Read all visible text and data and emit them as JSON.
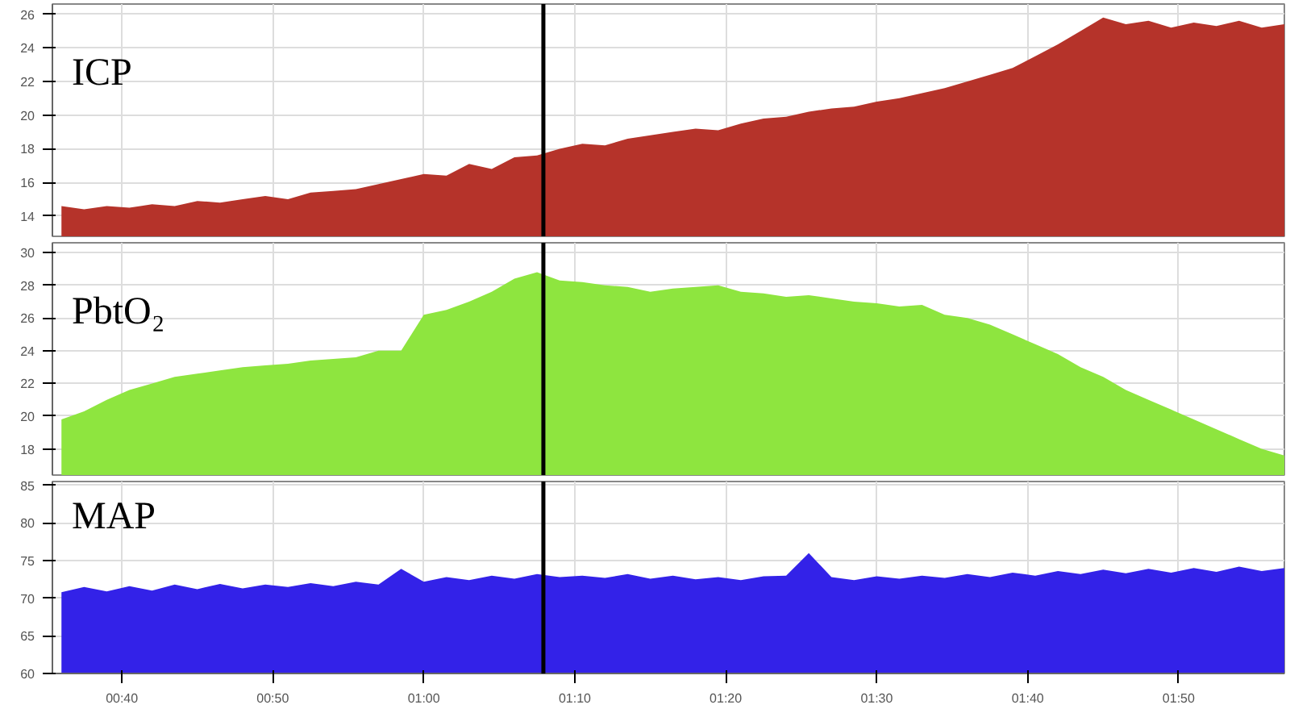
{
  "chart_data": [
    {
      "type": "area",
      "annotations": [
        "ICP"
      ],
      "color": "#b5332a",
      "grid": true,
      "tick_labels": "y",
      "x": [
        0.6,
        0.625,
        0.65,
        0.675,
        0.7,
        0.725,
        0.75,
        0.775,
        0.8,
        0.825,
        0.85,
        0.875,
        0.9,
        0.925,
        0.95,
        0.975,
        1.0,
        1.025,
        1.05,
        1.075,
        1.1,
        1.125,
        1.15,
        1.175,
        1.2,
        1.225,
        1.25,
        1.275,
        1.3,
        1.325,
        1.35,
        1.375,
        1.4,
        1.425,
        1.45,
        1.475,
        1.5,
        1.525,
        1.55,
        1.575,
        1.6,
        1.625,
        1.65,
        1.675,
        1.7,
        1.725,
        1.75,
        1.775,
        1.8,
        1.825,
        1.85,
        1.875,
        1.9,
        1.925,
        1.95
      ],
      "values": [
        14.6,
        14.4,
        14.6,
        14.5,
        14.7,
        14.6,
        14.9,
        14.8,
        15.0,
        15.2,
        15.0,
        15.4,
        15.5,
        15.6,
        15.9,
        16.2,
        16.5,
        16.4,
        17.1,
        16.8,
        17.5,
        17.6,
        18.0,
        18.3,
        18.2,
        18.6,
        18.8,
        19.0,
        19.2,
        19.1,
        19.5,
        19.8,
        19.9,
        20.2,
        20.4,
        20.5,
        20.8,
        21.0,
        21.3,
        21.6,
        22.0,
        22.4,
        22.8,
        23.5,
        24.2,
        25.0,
        25.8,
        25.4,
        25.6,
        25.2,
        25.5,
        25.3,
        25.6,
        25.2,
        25.4
      ],
      "xlim": [
        0.59,
        1.95
      ],
      "ylim": [
        12.8,
        26.6
      ],
      "yticks": [
        14,
        16,
        18,
        20,
        22,
        24,
        26
      ],
      "ref_lines": [
        {
          "axis": "x",
          "value": 1.132,
          "color": "#000000"
        }
      ]
    },
    {
      "type": "area",
      "annotations": [
        "PbtO₂"
      ],
      "color": "#8ee53f",
      "grid": true,
      "tick_labels": "y",
      "x": [
        0.6,
        0.625,
        0.65,
        0.675,
        0.7,
        0.725,
        0.75,
        0.775,
        0.8,
        0.825,
        0.85,
        0.875,
        0.9,
        0.925,
        0.95,
        0.975,
        1.0,
        1.025,
        1.05,
        1.075,
        1.1,
        1.125,
        1.15,
        1.175,
        1.2,
        1.225,
        1.25,
        1.275,
        1.3,
        1.325,
        1.35,
        1.375,
        1.4,
        1.425,
        1.45,
        1.475,
        1.5,
        1.525,
        1.55,
        1.575,
        1.6,
        1.625,
        1.65,
        1.675,
        1.7,
        1.725,
        1.75,
        1.775,
        1.8,
        1.825,
        1.85,
        1.875,
        1.9,
        1.925,
        1.95
      ],
      "values": [
        19.8,
        20.3,
        21.0,
        21.6,
        22.0,
        22.4,
        22.6,
        22.8,
        23.0,
        23.1,
        23.2,
        23.4,
        23.5,
        23.6,
        24.0,
        24.0,
        26.2,
        26.5,
        27.0,
        27.6,
        28.4,
        28.8,
        28.3,
        28.2,
        28.0,
        27.9,
        27.6,
        27.8,
        27.9,
        28.0,
        27.6,
        27.5,
        27.3,
        27.4,
        27.2,
        27.0,
        26.9,
        26.7,
        26.8,
        26.2,
        26.0,
        25.6,
        25.0,
        24.4,
        23.8,
        23.0,
        22.4,
        21.6,
        21.0,
        20.4,
        19.8,
        19.2,
        18.6,
        18.0,
        17.6
      ],
      "xlim": [
        0.59,
        1.95
      ],
      "ylim": [
        16.4,
        30.6
      ],
      "yticks": [
        18,
        20,
        22,
        24,
        26,
        28,
        30
      ],
      "ref_lines": [
        {
          "axis": "x",
          "value": 1.132,
          "color": "#000000"
        }
      ]
    },
    {
      "type": "area",
      "annotations": [
        "MAP"
      ],
      "color": "#3322e8",
      "grid": true,
      "x": [
        0.6,
        0.625,
        0.65,
        0.675,
        0.7,
        0.725,
        0.75,
        0.775,
        0.8,
        0.825,
        0.85,
        0.875,
        0.9,
        0.925,
        0.95,
        0.975,
        1.0,
        1.025,
        1.05,
        1.075,
        1.1,
        1.125,
        1.15,
        1.175,
        1.2,
        1.225,
        1.25,
        1.275,
        1.3,
        1.325,
        1.35,
        1.375,
        1.4,
        1.425,
        1.45,
        1.475,
        1.5,
        1.525,
        1.55,
        1.575,
        1.6,
        1.625,
        1.65,
        1.675,
        1.7,
        1.725,
        1.75,
        1.775,
        1.8,
        1.825,
        1.85,
        1.875,
        1.9,
        1.925,
        1.95
      ],
      "values": [
        70.8,
        71.5,
        70.9,
        71.6,
        71.0,
        71.8,
        71.2,
        71.9,
        71.3,
        71.8,
        71.5,
        72.0,
        71.6,
        72.2,
        71.8,
        73.9,
        72.2,
        72.8,
        72.4,
        73.0,
        72.6,
        73.2,
        72.8,
        73.0,
        72.7,
        73.2,
        72.6,
        73.0,
        72.5,
        72.8,
        72.4,
        72.9,
        73.0,
        76.0,
        72.8,
        72.4,
        72.9,
        72.6,
        73.0,
        72.7,
        73.2,
        72.8,
        73.4,
        73.0,
        73.6,
        73.2,
        73.8,
        73.3,
        73.9,
        73.4,
        74.0,
        73.5,
        74.2,
        73.6,
        74.0
      ],
      "xlim": [
        0.59,
        1.95
      ],
      "ylim": [
        60,
        85.5
      ],
      "yticks": [
        60,
        65,
        70,
        75,
        80,
        85
      ],
      "xticks": [
        {
          "value": 0.6667,
          "label": "00:40"
        },
        {
          "value": 0.8333,
          "label": "00:50"
        },
        {
          "value": 1.0,
          "label": "01:00"
        },
        {
          "value": 1.1667,
          "label": "01:10"
        },
        {
          "value": 1.3333,
          "label": "01:20"
        },
        {
          "value": 1.5,
          "label": "01:30"
        },
        {
          "value": 1.6667,
          "label": "01:40"
        },
        {
          "value": 1.8333,
          "label": "01:50"
        }
      ],
      "ref_lines": [
        {
          "axis": "x",
          "value": 1.132,
          "color": "#000000"
        }
      ]
    }
  ]
}
